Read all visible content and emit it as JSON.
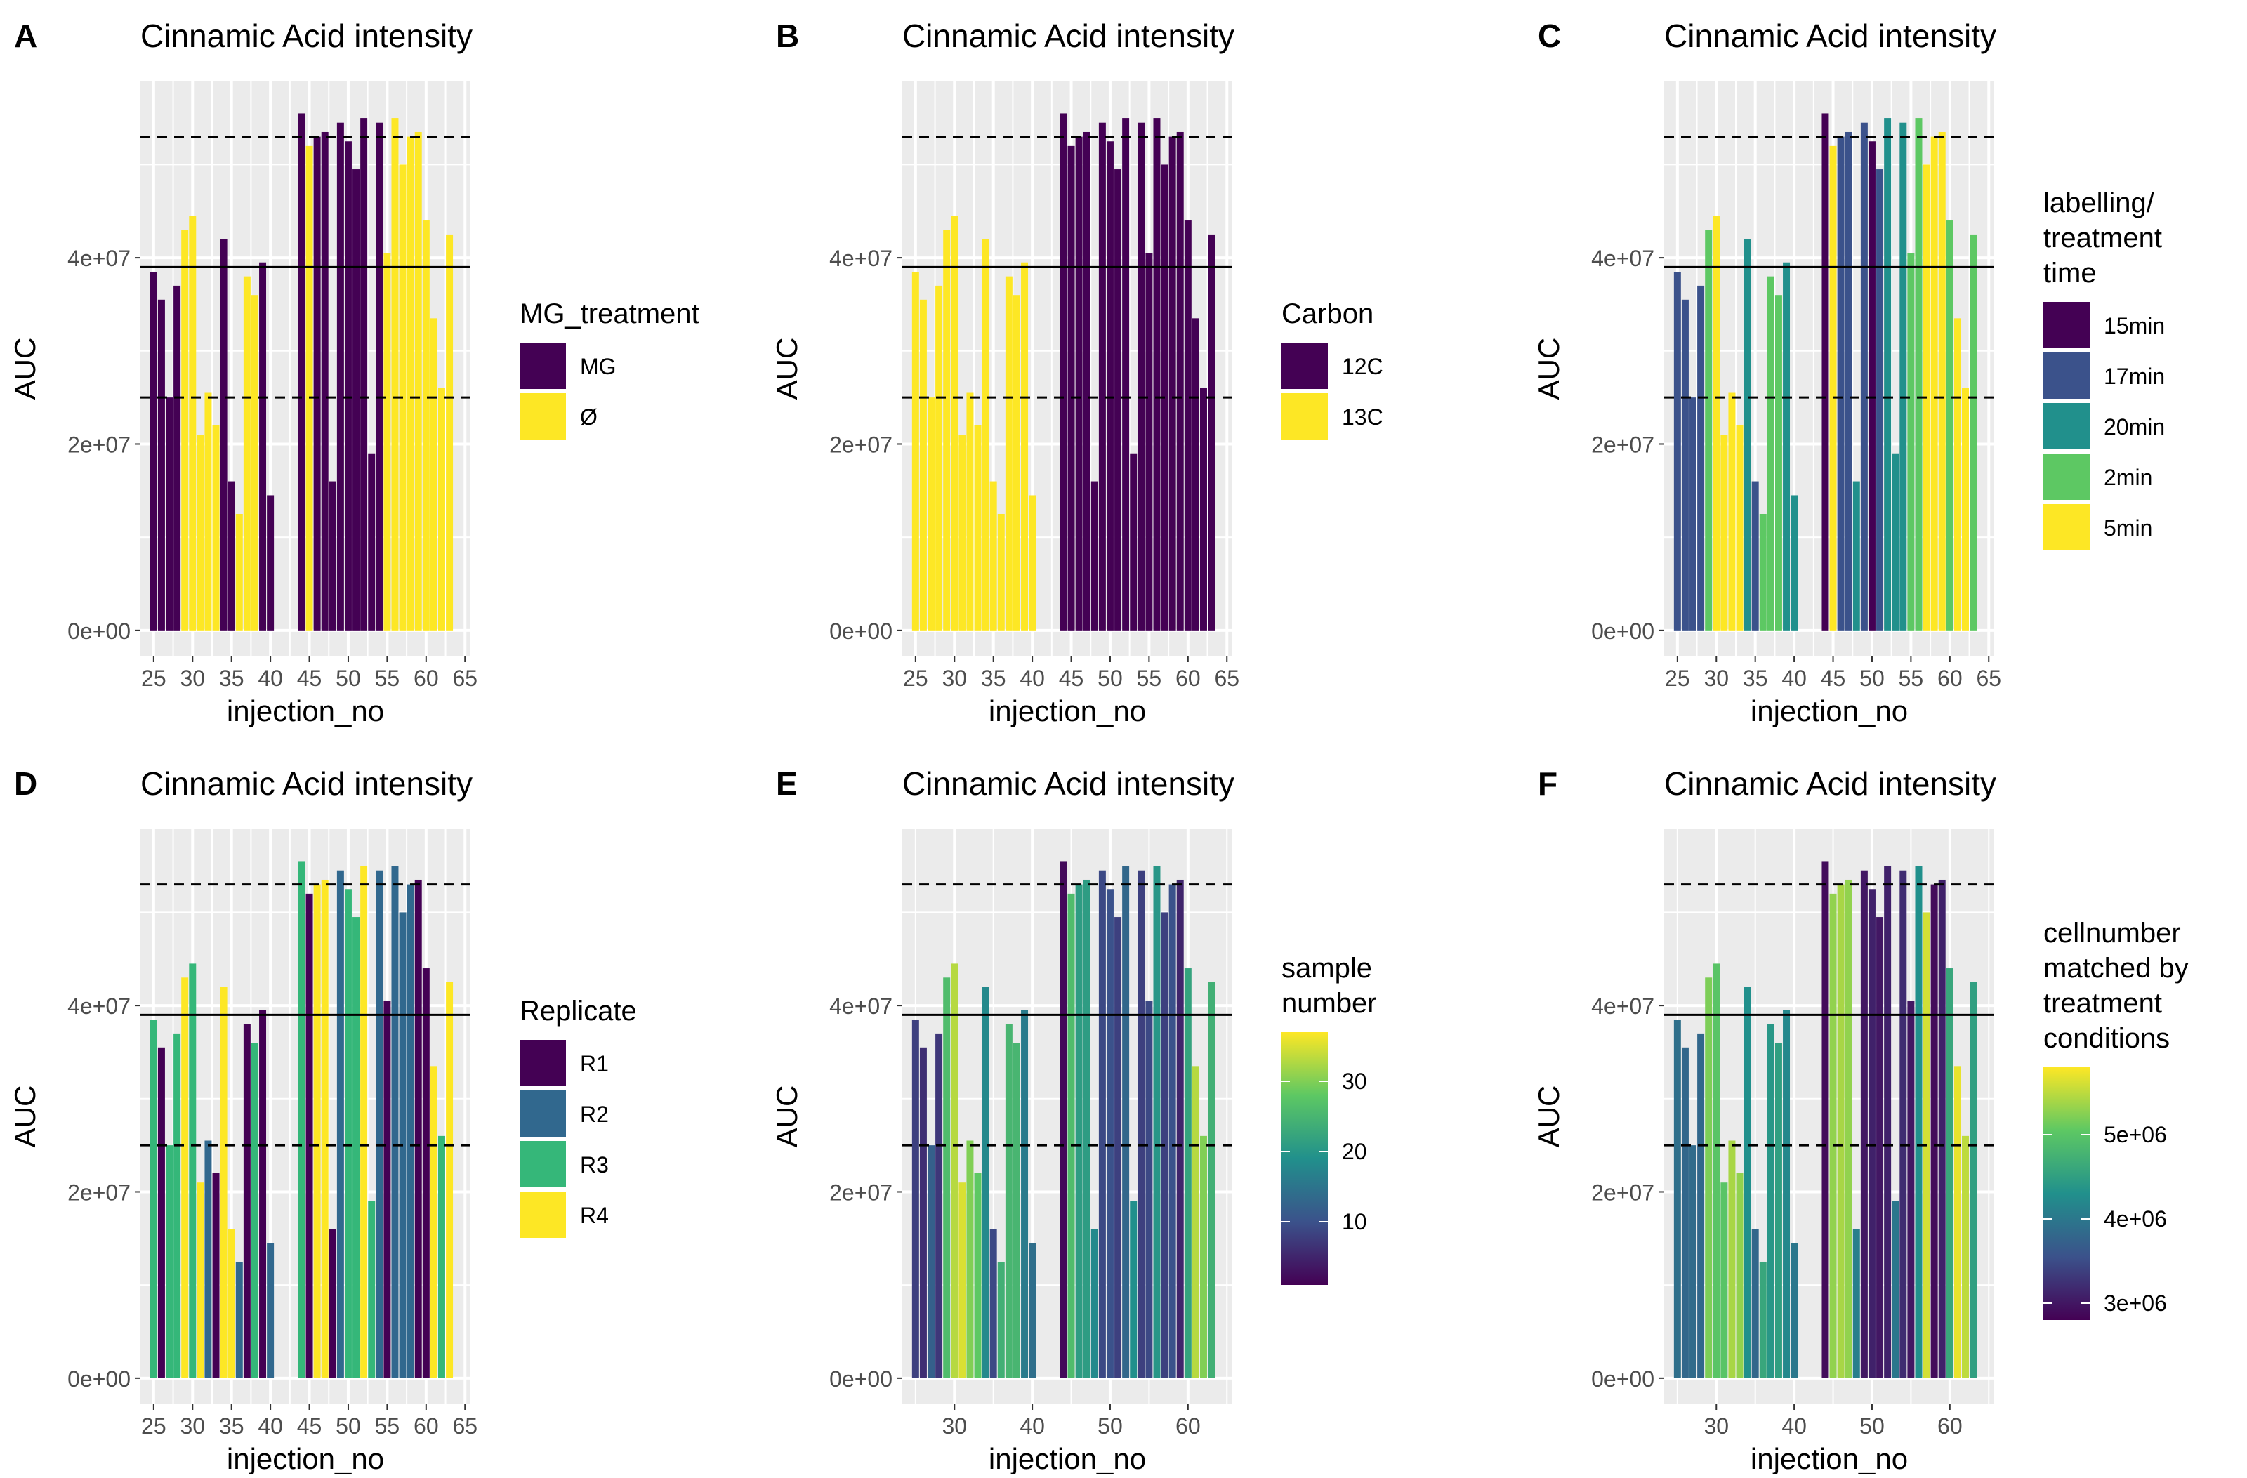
{
  "colors": {
    "panel_bg": "#ebebeb",
    "grid": "#ffffff",
    "hline": "#000000",
    "viridis": [
      "#440154",
      "#3b528b",
      "#21908c",
      "#5dc863",
      "#fde725"
    ]
  },
  "chart_data": [
    {
      "panel": "A",
      "type": "bar",
      "title": "Cinnamic Acid intensity",
      "xlabel": "injection_no",
      "ylabel": "AUC",
      "xlim": [
        23.3,
        65.7
      ],
      "ylim": [
        -2800000.0,
        59000000.0
      ],
      "xticks": [
        25,
        30,
        35,
        40,
        45,
        50,
        55,
        60,
        65
      ],
      "xtick_labels": [
        "25",
        "30",
        "35",
        "40",
        "45",
        "50",
        "55",
        "60",
        "65"
      ],
      "yticks": [
        0,
        20000000.0,
        40000000.0
      ],
      "ytick_labels": [
        "0e+00",
        "2e+07",
        "4e+07"
      ],
      "hlines": [
        {
          "y": 53000000.0,
          "style": "dashed"
        },
        {
          "y": 39000000.0,
          "style": "solid"
        },
        {
          "y": 25000000.0,
          "style": "dashed"
        }
      ],
      "color_by": "mg",
      "legend": {
        "title": [
          "MG_treatment"
        ],
        "kind": "discrete",
        "items": [
          {
            "label": "MG",
            "color": "#440154"
          },
          {
            "label": "Ø",
            "color": "#fde725"
          }
        ]
      }
    },
    {
      "panel": "B",
      "type": "bar",
      "title": "Cinnamic Acid intensity",
      "xlabel": "injection_no",
      "ylabel": "AUC",
      "xlim": [
        23.3,
        65.7
      ],
      "ylim": [
        -2800000.0,
        59000000.0
      ],
      "xticks": [
        25,
        30,
        35,
        40,
        45,
        50,
        55,
        60,
        65
      ],
      "xtick_labels": [
        "25",
        "30",
        "35",
        "40",
        "45",
        "50",
        "55",
        "60",
        "65"
      ],
      "yticks": [
        0,
        20000000.0,
        40000000.0
      ],
      "ytick_labels": [
        "0e+00",
        "2e+07",
        "4e+07"
      ],
      "hlines": [
        {
          "y": 53000000.0,
          "style": "dashed"
        },
        {
          "y": 39000000.0,
          "style": "solid"
        },
        {
          "y": 25000000.0,
          "style": "dashed"
        }
      ],
      "color_by": "carbon",
      "legend": {
        "title": [
          "Carbon"
        ],
        "kind": "discrete",
        "items": [
          {
            "label": "12C",
            "color": "#440154"
          },
          {
            "label": "13C",
            "color": "#fde725"
          }
        ]
      }
    },
    {
      "panel": "C",
      "type": "bar",
      "title": "Cinnamic Acid intensity",
      "xlabel": "injection_no",
      "ylabel": "AUC",
      "xlim": [
        23.3,
        65.7
      ],
      "ylim": [
        -2800000.0,
        59000000.0
      ],
      "xticks": [
        25,
        30,
        35,
        40,
        45,
        50,
        55,
        60,
        65
      ],
      "xtick_labels": [
        "25",
        "30",
        "35",
        "40",
        "45",
        "50",
        "55",
        "60",
        "65"
      ],
      "yticks": [
        0,
        20000000.0,
        40000000.0
      ],
      "ytick_labels": [
        "0e+00",
        "2e+07",
        "4e+07"
      ],
      "hlines": [
        {
          "y": 53000000.0,
          "style": "dashed"
        },
        {
          "y": 39000000.0,
          "style": "solid"
        },
        {
          "y": 25000000.0,
          "style": "dashed"
        }
      ],
      "color_by": "time",
      "legend": {
        "title": [
          "labelling/",
          "treatment",
          "time"
        ],
        "kind": "discrete",
        "items": [
          {
            "label": "15min",
            "color": "#440154"
          },
          {
            "label": "17min",
            "color": "#3b528b"
          },
          {
            "label": "20min",
            "color": "#21908c"
          },
          {
            "label": "2min",
            "color": "#5dc863"
          },
          {
            "label": "5min",
            "color": "#fde725"
          }
        ]
      }
    },
    {
      "panel": "D",
      "type": "bar",
      "title": "Cinnamic Acid intensity",
      "xlabel": "injection_no",
      "ylabel": "AUC",
      "xlim": [
        23.3,
        65.7
      ],
      "ylim": [
        -2800000.0,
        59000000.0
      ],
      "xticks": [
        25,
        30,
        35,
        40,
        45,
        50,
        55,
        60,
        65
      ],
      "xtick_labels": [
        "25",
        "30",
        "35",
        "40",
        "45",
        "50",
        "55",
        "60",
        "65"
      ],
      "yticks": [
        0,
        20000000.0,
        40000000.0
      ],
      "ytick_labels": [
        "0e+00",
        "2e+07",
        "4e+07"
      ],
      "hlines": [
        {
          "y": 53000000.0,
          "style": "dashed"
        },
        {
          "y": 39000000.0,
          "style": "solid"
        },
        {
          "y": 25000000.0,
          "style": "dashed"
        }
      ],
      "color_by": "rep",
      "legend": {
        "title": [
          "Replicate"
        ],
        "kind": "discrete",
        "items": [
          {
            "label": "R1",
            "color": "#440154"
          },
          {
            "label": "R2",
            "color": "#31688e"
          },
          {
            "label": "R3",
            "color": "#35b779"
          },
          {
            "label": "R4",
            "color": "#fde725"
          }
        ]
      }
    },
    {
      "panel": "E",
      "type": "bar",
      "title": "Cinnamic Acid intensity",
      "xlabel": "injection_no",
      "ylabel": "AUC",
      "xlim": [
        23.3,
        65.7
      ],
      "ylim": [
        -2800000.0,
        59000000.0
      ],
      "xticks": [
        30,
        40,
        50,
        60
      ],
      "xtick_labels": [
        "30",
        "40",
        "50",
        "60"
      ],
      "yticks": [
        0,
        20000000.0,
        40000000.0
      ],
      "ytick_labels": [
        "0e+00",
        "2e+07",
        "4e+07"
      ],
      "hlines": [
        {
          "y": 53000000.0,
          "style": "dashed"
        },
        {
          "y": 39000000.0,
          "style": "solid"
        },
        {
          "y": 25000000.0,
          "style": "dashed"
        }
      ],
      "color_by": "sample",
      "legend": {
        "title": [
          "sample",
          "number"
        ],
        "kind": "continuous",
        "range": [
          1,
          37
        ],
        "ticks": [
          10,
          20,
          30
        ],
        "tick_labels": [
          "10",
          "20",
          "30"
        ]
      }
    },
    {
      "panel": "F",
      "type": "bar",
      "title": "Cinnamic Acid intensity",
      "xlabel": "injection_no",
      "ylabel": "AUC",
      "xlim": [
        23.3,
        65.7
      ],
      "ylim": [
        -2800000.0,
        59000000.0
      ],
      "xticks": [
        30,
        40,
        50,
        60
      ],
      "xtick_labels": [
        "30",
        "40",
        "50",
        "60"
      ],
      "yticks": [
        0,
        20000000.0,
        40000000.0
      ],
      "ytick_labels": [
        "0e+00",
        "2e+07",
        "4e+07"
      ],
      "hlines": [
        {
          "y": 53000000.0,
          "style": "dashed"
        },
        {
          "y": 39000000.0,
          "style": "solid"
        },
        {
          "y": 25000000.0,
          "style": "dashed"
        }
      ],
      "color_by": "cell",
      "legend": {
        "title": [
          "cellnumber",
          "matched by",
          " treatment",
          "conditions"
        ],
        "kind": "continuous",
        "range": [
          2800000.0,
          5800000.0
        ],
        "ticks": [
          3000000.0,
          4000000.0,
          5000000.0
        ],
        "tick_labels": [
          "3e+06",
          "4e+06",
          "5e+06"
        ]
      }
    }
  ],
  "samples": [
    {
      "x": 25,
      "y": 38500000.0,
      "mg": "MG",
      "carbon": "13C",
      "time": "17min",
      "rep": "R3",
      "sample": 8,
      "cell": 3900000.0
    },
    {
      "x": 26,
      "y": 35500000.0,
      "mg": "MG",
      "carbon": "13C",
      "time": "17min",
      "rep": "R1",
      "sample": 6,
      "cell": 3800000.0
    },
    {
      "x": 27,
      "y": 25000000.0,
      "mg": "MG",
      "carbon": "13C",
      "time": "17min",
      "rep": "R3",
      "sample": 12,
      "cell": 3850000.0
    },
    {
      "x": 28,
      "y": 37000000.0,
      "mg": "MG",
      "carbon": "13C",
      "time": "17min",
      "rep": "R3",
      "sample": 7,
      "cell": 3800000.0
    },
    {
      "x": 29,
      "y": 43000000.0,
      "mg": "Ø",
      "carbon": "13C",
      "time": "2min",
      "rep": "R4",
      "sample": 26,
      "cell": 5200000.0
    },
    {
      "x": 30,
      "y": 44500000.0,
      "mg": "Ø",
      "carbon": "13C",
      "time": "5min",
      "rep": "R3",
      "sample": 33,
      "cell": 5000000.0
    },
    {
      "x": 31,
      "y": 21000000.0,
      "mg": "Ø",
      "carbon": "13C",
      "time": "5min",
      "rep": "R4",
      "sample": 35,
      "cell": 5000000.0
    },
    {
      "x": 32,
      "y": 25500000.0,
      "mg": "Ø",
      "carbon": "13C",
      "time": "5min",
      "rep": "R2",
      "sample": 30,
      "cell": 5400000.0
    },
    {
      "x": 33,
      "y": 22000000.0,
      "mg": "Ø",
      "carbon": "13C",
      "time": "5min",
      "rep": "R1",
      "sample": 28,
      "cell": 5300000.0
    },
    {
      "x": 34,
      "y": 42000000.0,
      "mg": "MG",
      "carbon": "13C",
      "time": "20min",
      "rep": "R4",
      "sample": 18,
      "cell": 4300000.0
    },
    {
      "x": 35,
      "y": 16000000.0,
      "mg": "MG",
      "carbon": "13C",
      "time": "17min",
      "rep": "R4",
      "sample": 9,
      "cell": 3800000.0
    },
    {
      "x": 36,
      "y": 12500000.0,
      "mg": "Ø",
      "carbon": "13C",
      "time": "2min",
      "rep": "R2",
      "sample": 24,
      "cell": 4600000.0
    },
    {
      "x": 37,
      "y": 38000000.0,
      "mg": "Ø",
      "carbon": "13C",
      "time": "2min",
      "rep": "R1",
      "sample": 25,
      "cell": 4400000.0
    },
    {
      "x": 38,
      "y": 36000000.0,
      "mg": "Ø",
      "carbon": "13C",
      "time": "2min",
      "rep": "R3",
      "sample": 25,
      "cell": 4500000.0
    },
    {
      "x": 39,
      "y": 39500000.0,
      "mg": "MG",
      "carbon": "13C",
      "time": "20min",
      "rep": "R1",
      "sample": 16,
      "cell": 4200000.0
    },
    {
      "x": 40,
      "y": 14500000.0,
      "mg": "MG",
      "carbon": "13C",
      "time": "20min",
      "rep": "R2",
      "sample": 14,
      "cell": 4000000.0
    },
    {
      "x": 44,
      "y": 55500000.0,
      "mg": "MG",
      "carbon": "12C",
      "time": "15min",
      "rep": "R3",
      "sample": 2,
      "cell": 2900000.0
    },
    {
      "x": 45,
      "y": 52000000.0,
      "mg": "Ø",
      "carbon": "12C",
      "time": "5min",
      "rep": "R1",
      "sample": 26,
      "cell": 5300000.0
    },
    {
      "x": 46,
      "y": 53000000.0,
      "mg": "MG",
      "carbon": "12C",
      "time": "17min",
      "rep": "R4",
      "sample": 21,
      "cell": 5400000.0
    },
    {
      "x": 47,
      "y": 53500000.0,
      "mg": "MG",
      "carbon": "12C",
      "time": "17min",
      "rep": "R4",
      "sample": 21,
      "cell": 5300000.0
    },
    {
      "x": 48,
      "y": 16000000.0,
      "mg": "MG",
      "carbon": "12C",
      "time": "20min",
      "rep": "R1",
      "sample": 18,
      "cell": 4100000.0
    },
    {
      "x": 49,
      "y": 54500000.0,
      "mg": "MG",
      "carbon": "12C",
      "time": "17min",
      "rep": "R2",
      "sample": 9,
      "cell": 3000000.0
    },
    {
      "x": 50,
      "y": 52500000.0,
      "mg": "MG",
      "carbon": "12C",
      "time": "15min",
      "rep": "R3",
      "sample": 10,
      "cell": 3100000.0
    },
    {
      "x": 51,
      "y": 49500000.0,
      "mg": "MG",
      "carbon": "12C",
      "time": "17min",
      "rep": "R3",
      "sample": 8,
      "cell": 3000000.0
    },
    {
      "x": 52,
      "y": 55000000.0,
      "mg": "MG",
      "carbon": "12C",
      "time": "20min",
      "rep": "R4",
      "sample": 13,
      "cell": 3100000.0
    },
    {
      "x": 53,
      "y": 19000000.0,
      "mg": "MG",
      "carbon": "12C",
      "time": "20min",
      "rep": "R3",
      "sample": 19,
      "cell": 4000000.0
    },
    {
      "x": 54,
      "y": 54500000.0,
      "mg": "MG",
      "carbon": "12C",
      "time": "20min",
      "rep": "R2",
      "sample": 8,
      "cell": 3200000.0
    },
    {
      "x": 55,
      "y": 40500000.0,
      "mg": "Ø",
      "carbon": "12C",
      "time": "2min",
      "rep": "R1",
      "sample": 9,
      "cell": 3000000.0
    },
    {
      "x": 56,
      "y": 55000000.0,
      "mg": "Ø",
      "carbon": "12C",
      "time": "2min",
      "rep": "R2",
      "sample": 20,
      "cell": 4300000.0
    },
    {
      "x": 57,
      "y": 50000000.0,
      "mg": "Ø",
      "carbon": "12C",
      "time": "5min",
      "rep": "R2",
      "sample": 8,
      "cell": 5600000.0
    },
    {
      "x": 58,
      "y": 53000000.0,
      "mg": "Ø",
      "carbon": "12C",
      "time": "5min",
      "rep": "R2",
      "sample": 10,
      "cell": 2900000.0
    },
    {
      "x": 59,
      "y": 53500000.0,
      "mg": "Ø",
      "carbon": "12C",
      "time": "5min",
      "rep": "R1",
      "sample": 5,
      "cell": 3100000.0
    },
    {
      "x": 60,
      "y": 44000000.0,
      "mg": "Ø",
      "carbon": "12C",
      "time": "2min",
      "rep": "R1",
      "sample": 22,
      "cell": 4600000.0
    },
    {
      "x": 61,
      "y": 33500000.0,
      "mg": "Ø",
      "carbon": "12C",
      "time": "5min",
      "rep": "R4",
      "sample": 33,
      "cell": 5700000.0
    },
    {
      "x": 62,
      "y": 26000000.0,
      "mg": "Ø",
      "carbon": "12C",
      "time": "5min",
      "rep": "R3",
      "sample": 30,
      "cell": 5500000.0
    },
    {
      "x": 63,
      "y": 42500000.0,
      "mg": "Ø",
      "carbon": "12C",
      "time": "2min",
      "rep": "R4",
      "sample": 24,
      "cell": 4500000.0
    }
  ]
}
